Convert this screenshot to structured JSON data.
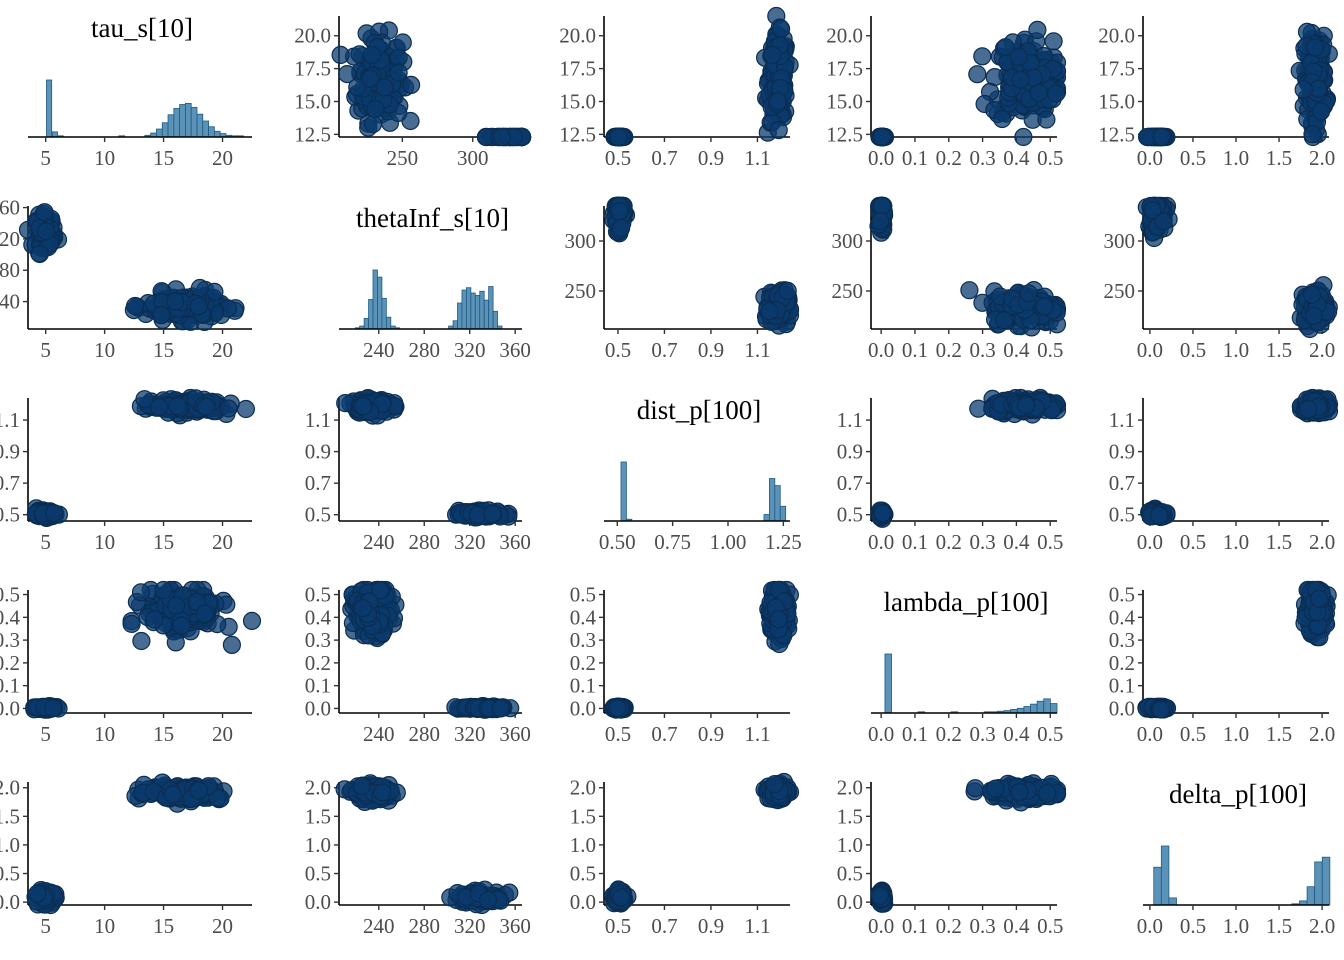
{
  "chart_data": {
    "type": "scatter",
    "kind": "pairs plot (scatterplot matrix) of MCMC draws",
    "variables": [
      {
        "name": "tau_s[10]",
        "range": [
          3.5,
          22.5
        ],
        "ticks": [
          5,
          10,
          15,
          20
        ],
        "hist": [
          {
            "x": 4.75,
            "w": 0.45,
            "h": 1.0
          },
          {
            "x": 5.25,
            "w": 0.45,
            "h": 0.09
          },
          {
            "x": 5.75,
            "w": 0.45,
            "h": 0.02
          },
          {
            "x": 11.0,
            "w": 0.5,
            "h": 0.01
          },
          {
            "x": 13.25,
            "w": 0.5,
            "h": 0.03
          },
          {
            "x": 13.75,
            "w": 0.5,
            "h": 0.07
          },
          {
            "x": 14.25,
            "w": 0.5,
            "h": 0.14
          },
          {
            "x": 14.75,
            "w": 0.5,
            "h": 0.25
          },
          {
            "x": 15.25,
            "w": 0.5,
            "h": 0.39
          },
          {
            "x": 15.75,
            "w": 0.5,
            "h": 0.5
          },
          {
            "x": 16.25,
            "w": 0.5,
            "h": 0.57
          },
          {
            "x": 16.75,
            "w": 0.5,
            "h": 0.59
          },
          {
            "x": 17.25,
            "w": 0.5,
            "h": 0.52
          },
          {
            "x": 17.75,
            "w": 0.5,
            "h": 0.4
          },
          {
            "x": 18.25,
            "w": 0.5,
            "h": 0.28
          },
          {
            "x": 18.75,
            "w": 0.5,
            "h": 0.18
          },
          {
            "x": 19.25,
            "w": 0.5,
            "h": 0.1
          },
          {
            "x": 19.75,
            "w": 0.5,
            "h": 0.06
          },
          {
            "x": 20.25,
            "w": 0.5,
            "h": 0.03
          },
          {
            "x": 20.75,
            "w": 0.5,
            "h": 0.02
          },
          {
            "x": 21.25,
            "w": 0.5,
            "h": 0.01
          }
        ],
        "clusters": [
          {
            "c": 5.0,
            "s": 0.4
          },
          {
            "c": 16.7,
            "s": 1.6
          }
        ]
      },
      {
        "name": "thetaInf_s[10]",
        "range": [
          205,
          366
        ],
        "ticks": [
          240,
          280,
          320,
          360
        ],
        "hist": [
          {
            "x": 216,
            "w": 4,
            "h": 0.02
          },
          {
            "x": 220,
            "w": 4,
            "h": 0.05
          },
          {
            "x": 224,
            "w": 4,
            "h": 0.18
          },
          {
            "x": 228,
            "w": 4,
            "h": 0.5
          },
          {
            "x": 232,
            "w": 4,
            "h": 1.0
          },
          {
            "x": 236,
            "w": 4,
            "h": 0.88
          },
          {
            "x": 240,
            "w": 4,
            "h": 0.52
          },
          {
            "x": 244,
            "w": 4,
            "h": 0.2
          },
          {
            "x": 248,
            "w": 4,
            "h": 0.05
          },
          {
            "x": 252,
            "w": 4,
            "h": 0.02
          },
          {
            "x": 300,
            "w": 4,
            "h": 0.05
          },
          {
            "x": 304,
            "w": 4,
            "h": 0.14
          },
          {
            "x": 308,
            "w": 4,
            "h": 0.44
          },
          {
            "x": 312,
            "w": 4,
            "h": 0.66
          },
          {
            "x": 316,
            "w": 4,
            "h": 0.7
          },
          {
            "x": 320,
            "w": 4,
            "h": 0.61
          },
          {
            "x": 324,
            "w": 4,
            "h": 0.57
          },
          {
            "x": 328,
            "w": 4,
            "h": 0.64
          },
          {
            "x": 332,
            "w": 4,
            "h": 0.49
          },
          {
            "x": 336,
            "w": 4,
            "h": 0.72
          },
          {
            "x": 340,
            "w": 4,
            "h": 0.3
          },
          {
            "x": 344,
            "w": 4,
            "h": 0.05
          }
        ],
        "clusters": [
          {
            "c": 330,
            "s": 10
          },
          {
            "c": 234,
            "s": 8
          }
        ]
      },
      {
        "name": "dist_p[100]",
        "range": [
          0.44,
          1.28
        ],
        "ticks": [
          0.5,
          0.75,
          1.0,
          1.25
        ],
        "tick_labels_offdiag": [
          "0.5",
          "0.7",
          "0.9",
          "1.1"
        ],
        "ticks_offdiag": [
          0.5,
          0.7,
          0.9,
          1.1
        ],
        "hist": [
          {
            "x": 0.5,
            "w": 0.025,
            "h": 1.0
          },
          {
            "x": 0.525,
            "w": 0.025,
            "h": 0.03
          },
          {
            "x": 1.16,
            "w": 0.025,
            "h": 0.11
          },
          {
            "x": 1.185,
            "w": 0.025,
            "h": 0.72
          },
          {
            "x": 1.21,
            "w": 0.025,
            "h": 0.6
          },
          {
            "x": 1.235,
            "w": 0.025,
            "h": 0.25
          }
        ],
        "clusters": [
          {
            "c": 0.505,
            "s": 0.01
          },
          {
            "c": 1.19,
            "s": 0.02
          }
        ]
      },
      {
        "name": "lambda_p[100]",
        "range": [
          -0.03,
          0.52
        ],
        "ticks": [
          0.0,
          0.1,
          0.2,
          0.3,
          0.4,
          0.5
        ],
        "hist": [
          {
            "x": 0.0,
            "w": 0.02,
            "h": 1.0
          },
          {
            "x": 0.1,
            "w": 0.02,
            "h": 0.006
          },
          {
            "x": 0.2,
            "w": 0.02,
            "h": 0.006
          },
          {
            "x": 0.3,
            "w": 0.02,
            "h": 0.015
          },
          {
            "x": 0.32,
            "w": 0.02,
            "h": 0.02
          },
          {
            "x": 0.34,
            "w": 0.02,
            "h": 0.03
          },
          {
            "x": 0.36,
            "w": 0.02,
            "h": 0.04
          },
          {
            "x": 0.38,
            "w": 0.02,
            "h": 0.06
          },
          {
            "x": 0.4,
            "w": 0.02,
            "h": 0.08
          },
          {
            "x": 0.42,
            "w": 0.02,
            "h": 0.11
          },
          {
            "x": 0.44,
            "w": 0.02,
            "h": 0.15
          },
          {
            "x": 0.46,
            "w": 0.02,
            "h": 0.2
          },
          {
            "x": 0.48,
            "w": 0.02,
            "h": 0.24
          },
          {
            "x": 0.5,
            "w": 0.02,
            "h": 0.16
          }
        ],
        "clusters": [
          {
            "c": 0.002,
            "s": 0.003
          },
          {
            "c": 0.43,
            "s": 0.05
          }
        ]
      },
      {
        "name": "delta_p[100]",
        "range": [
          -0.08,
          2.08
        ],
        "ticks": [
          0.0,
          0.5,
          1.0,
          1.5,
          2.0
        ],
        "hist": [
          {
            "x": 0.0,
            "w": 0.09,
            "h": 0.64
          },
          {
            "x": 0.09,
            "w": 0.09,
            "h": 1.0
          },
          {
            "x": 0.18,
            "w": 0.09,
            "h": 0.12
          },
          {
            "x": 1.64,
            "w": 0.09,
            "h": 0.02
          },
          {
            "x": 1.73,
            "w": 0.09,
            "h": 0.07
          },
          {
            "x": 1.82,
            "w": 0.09,
            "h": 0.31
          },
          {
            "x": 1.91,
            "w": 0.09,
            "h": 0.73
          },
          {
            "x": 2.0,
            "w": 0.09,
            "h": 0.81
          }
        ],
        "clusters": [
          {
            "c": 0.08,
            "s": 0.05
          },
          {
            "c": 1.92,
            "s": 0.06
          }
        ]
      }
    ],
    "title": "",
    "xlabel": "",
    "ylabel": "",
    "grid": false,
    "legend": "none",
    "colors": {
      "bar_fill": "#5b93b8",
      "bar_stroke": "#1f5a85",
      "point_fill": "#0b3b6e",
      "point_stroke": "#0a2d52"
    },
    "notes": "Two modes per variable: mode A (tau~5, thetaInf~330, dist~0.5, lambda~0, delta~0.1) and mode B (tau~16.7, thetaInf~234, dist~1.19, lambda~0.43, delta~1.92)."
  }
}
